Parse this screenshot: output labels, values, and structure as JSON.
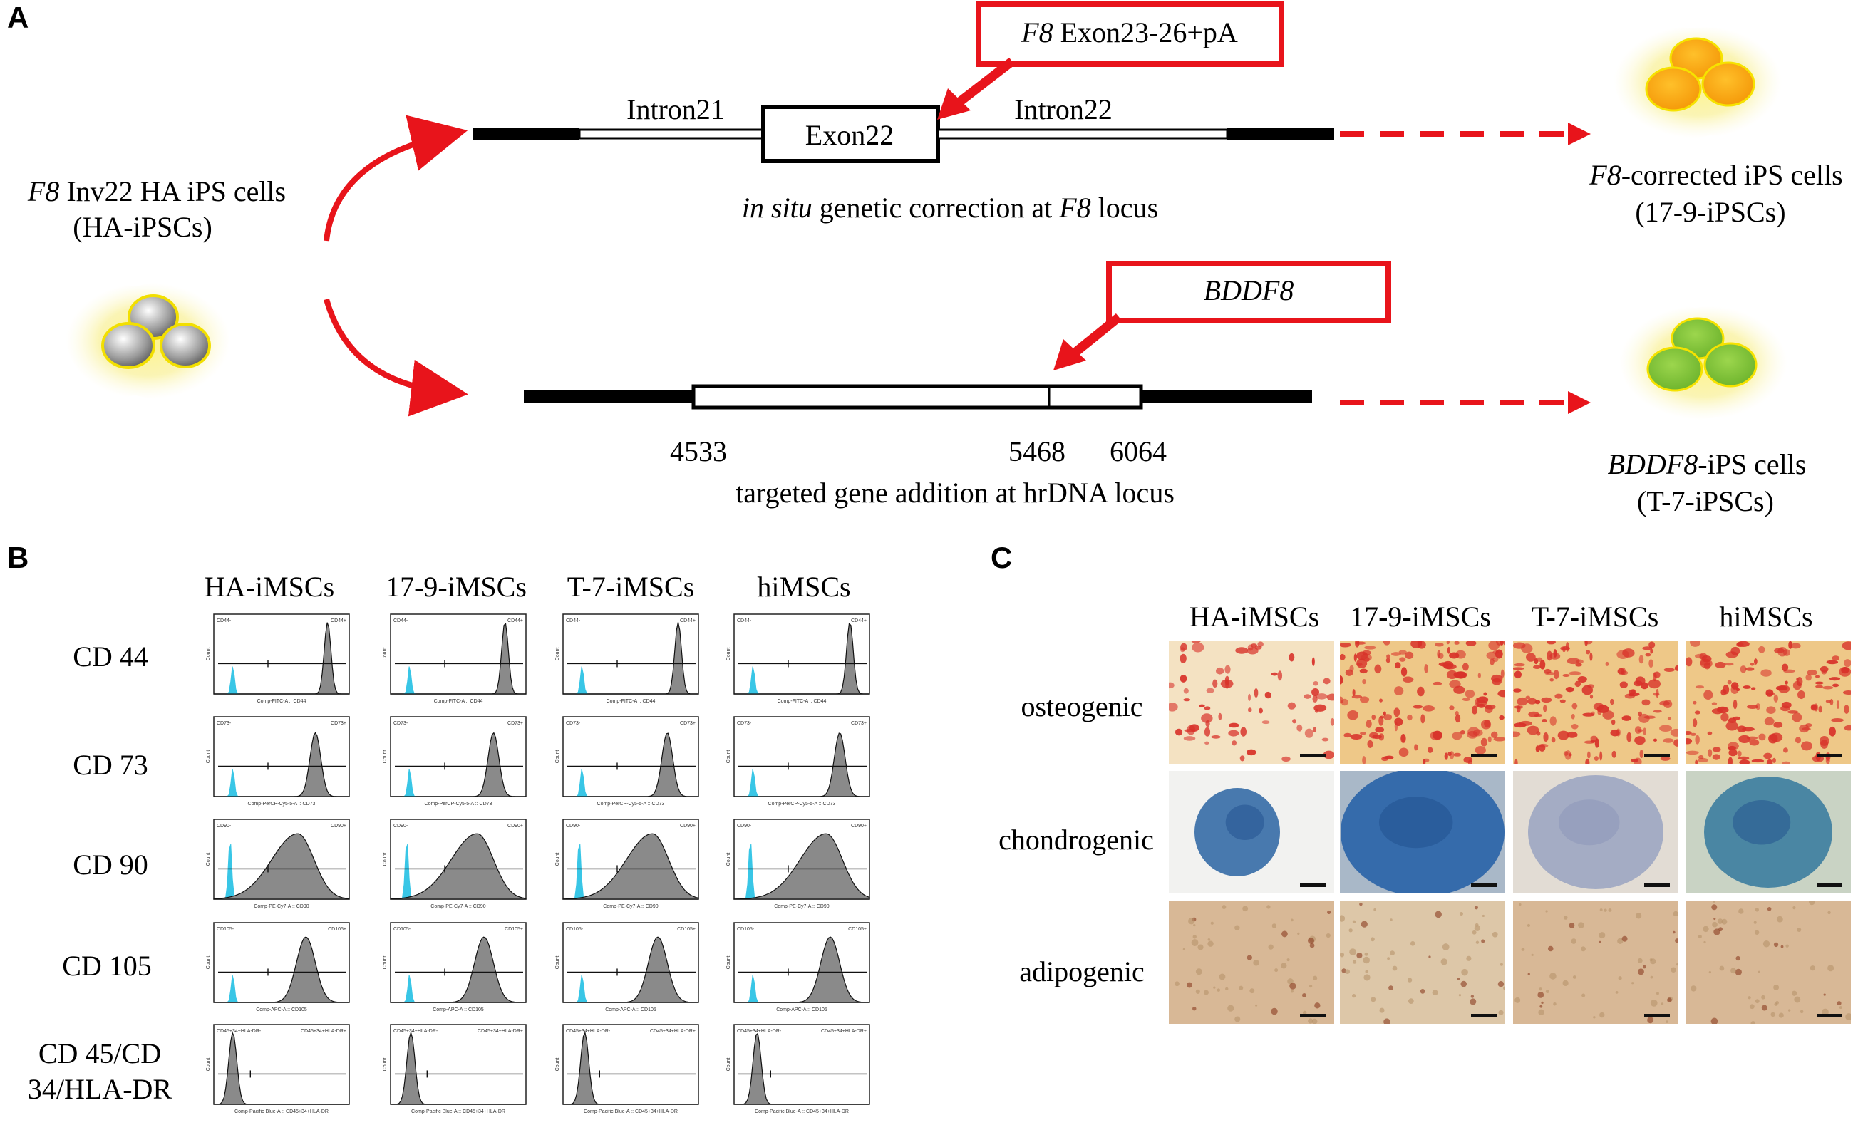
{
  "panelA": {
    "letter": "A",
    "source_cells": {
      "gene": "F8",
      "text": " Inv22 HA iPS cells",
      "line2": "(HA-iPSCs)"
    },
    "top": {
      "box_prefix": "F8",
      "box_suffix": " Exon23-26+pA",
      "intron_left": "Intron21",
      "exon": "Exon22",
      "intron_right": "Intron22",
      "caption_parts": [
        "in situ",
        " genetic correction at ",
        "F8",
        " locus"
      ]
    },
    "bottom": {
      "box_label": "BDDF8",
      "pos1": "4533",
      "pos2": "5468",
      "pos3": "6064",
      "caption": "targeted gene addition at hrDNA locus"
    },
    "result_top": {
      "gene": "F8",
      "text": "-corrected iPS cells",
      "line2": "(17-9-iPSCs)"
    },
    "result_bottom": {
      "gene": "BDDF8",
      "text": "-iPS cells",
      "line2": "(T-7-iPSCs)"
    },
    "colors": {
      "arrow_red": "#e8141b",
      "cell_yellow": "#f5d90a",
      "orange_nucleus": "#f8a816",
      "green_nucleus": "#7ec238",
      "grey_nucleus": "#8c8c8c"
    }
  },
  "panelB": {
    "letter": "B",
    "columns": [
      "HA-iMSCs",
      "17-9-iMSCs",
      "T-7-iMSCs",
      "hiMSCs"
    ],
    "rows": [
      {
        "label": "CD 44",
        "kind": "high",
        "gate_left": "CD44-",
        "gate_right": "CD44+"
      },
      {
        "label": "CD 73",
        "kind": "high",
        "gate_left": "CD73-",
        "gate_right": "CD73+"
      },
      {
        "label": "CD 90",
        "kind": "broad",
        "gate_left": "CD90-",
        "gate_right": "CD90+"
      },
      {
        "label": "CD 105",
        "kind": "high",
        "gate_left": "CD105-",
        "gate_right": "CD105+"
      },
      {
        "label_line1": "CD 45/CD",
        "label_line2": "34/HLA-DR",
        "kind": "low",
        "gate_left": "CD45+34+HLA-DR-",
        "gate_right": "CD45+34+HLA-DR+"
      }
    ],
    "y_axis_label": "Count",
    "x_axis_labels": [
      "Comp-FITC-A :: CD44",
      "Comp-PerCP-Cy5-5-A :: CD73",
      "Comp-PE-Cy7-A :: CD90",
      "Comp-APC-A :: CD105",
      "Comp-Pacific Blue-A :: CD45+34+HLA-DR"
    ],
    "colors": {
      "control": "#39c6e6",
      "sample": "#8a8a8a"
    }
  },
  "panelC": {
    "letter": "C",
    "columns": [
      "HA-iMSCs",
      "17-9-iMSCs",
      "T-7-iMSCs",
      "hiMSCs"
    ],
    "rows": [
      "osteogenic",
      "chondrogenic",
      "adipogenic"
    ],
    "colors": {
      "alizarin_red": "#d8322a",
      "osteo_bg": "#eec888",
      "alcian_blue": "#2b64a8",
      "chondro_bg": "#e2dcd4",
      "adipo_bg": "#d8b896"
    }
  }
}
